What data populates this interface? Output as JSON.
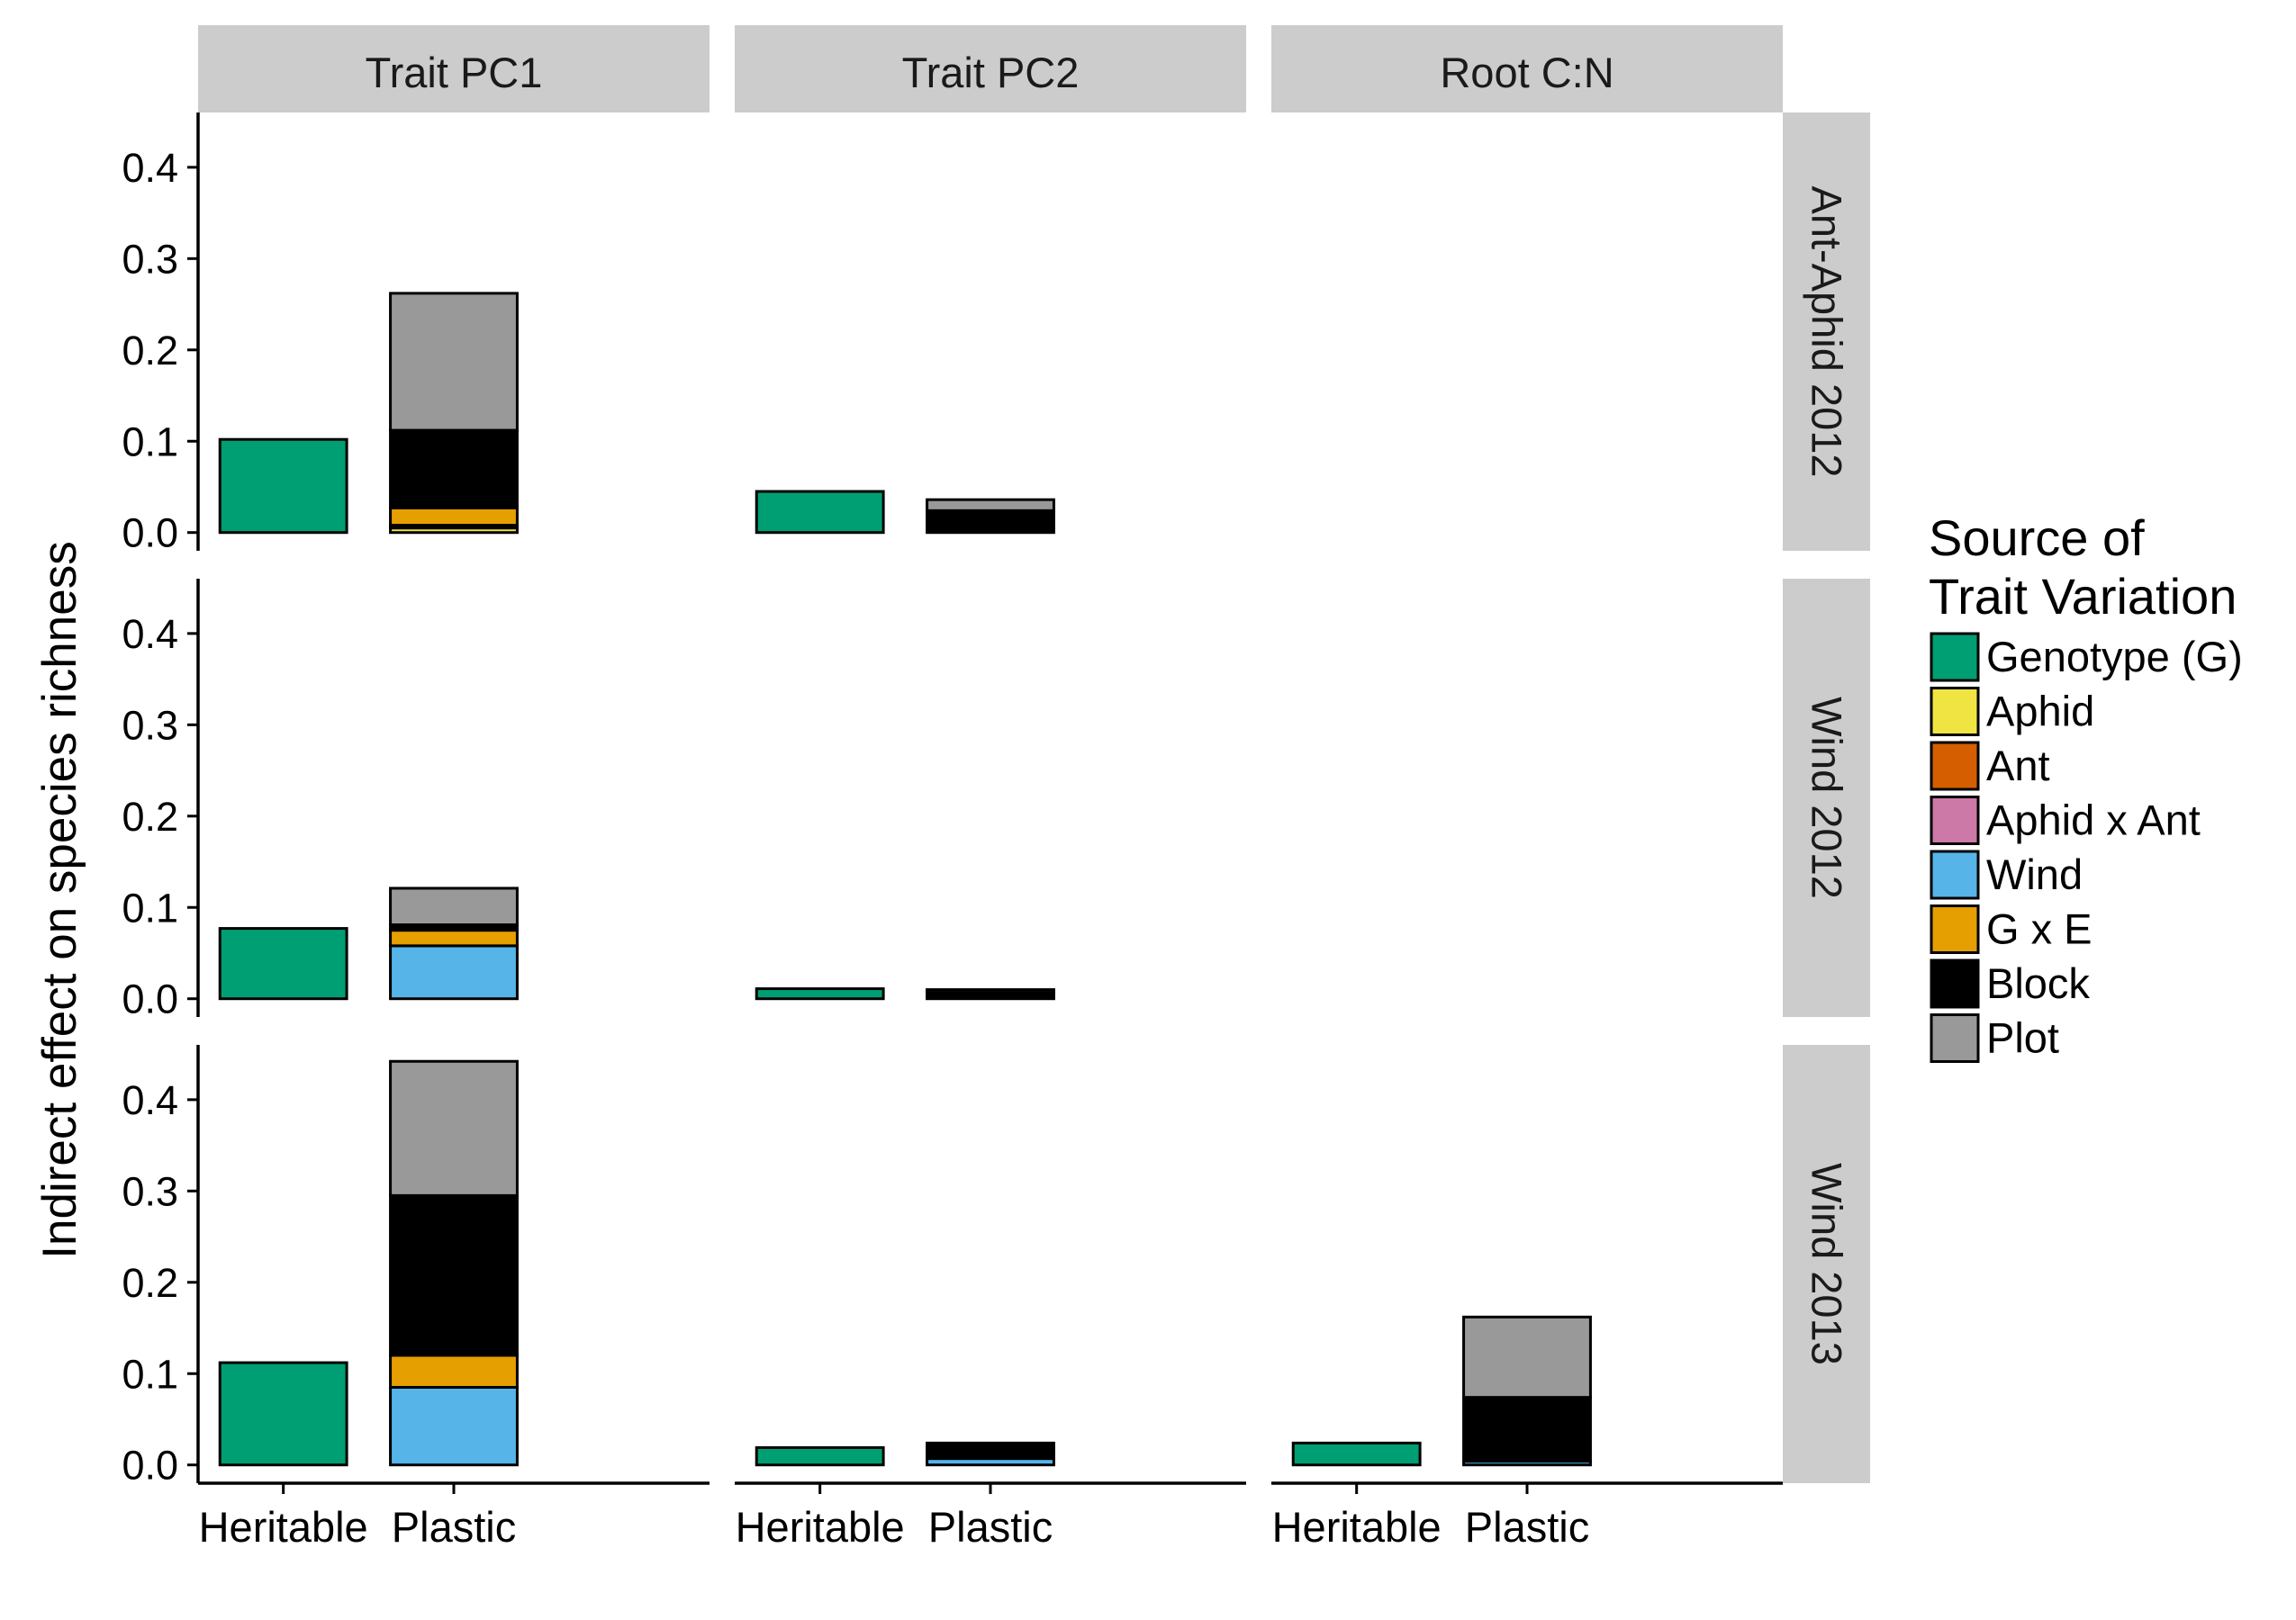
{
  "chart_data": {
    "type": "bar",
    "stacked": true,
    "ylabel": "Indirect effect on species richness",
    "xlabel": "",
    "ylim": [
      -0.02,
      0.46
    ],
    "y_ticks": [
      0.0,
      0.1,
      0.2,
      0.3,
      0.4
    ],
    "y_tick_labels": [
      "0.0",
      "0.1",
      "0.2",
      "0.3",
      "0.4"
    ],
    "columns": [
      "Trait PC1",
      "Trait PC2",
      "Root C:N"
    ],
    "rows": [
      "Ant-Aphid 2012",
      "Wind 2012",
      "Wind 2013"
    ],
    "categories": [
      "Heritable",
      "Plastic"
    ],
    "legend": {
      "title_lines": [
        "Source of",
        "Trait Variation"
      ],
      "position": "right",
      "items": [
        {
          "name": "Genotype (G)",
          "color": "#009E73"
        },
        {
          "name": "Aphid",
          "color": "#F0E442"
        },
        {
          "name": "Ant",
          "color": "#D55E00"
        },
        {
          "name": "Aphid x Ant",
          "color": "#CC79A7"
        },
        {
          "name": "Wind",
          "color": "#56B4E9"
        },
        {
          "name": "G x E",
          "color": "#E69F00"
        },
        {
          "name": "Block",
          "color": "#000000"
        },
        {
          "name": "Plot",
          "color": "#999999"
        }
      ]
    },
    "panels": [
      {
        "row": "Ant-Aphid 2012",
        "column": "Trait PC1",
        "bars": [
          {
            "category": "Heritable",
            "segments": [
              {
                "source": "Genotype (G)",
                "value": 0.102
              }
            ]
          },
          {
            "category": "Plastic",
            "segments": [
              {
                "source": "Aphid",
                "value": 0.005
              },
              {
                "source": "Ant",
                "value": 0.003
              },
              {
                "source": "G x E",
                "value": 0.019
              },
              {
                "source": "Block",
                "value": 0.085
              },
              {
                "source": "Plot",
                "value": 0.15
              }
            ]
          }
        ]
      },
      {
        "row": "Ant-Aphid 2012",
        "column": "Trait PC2",
        "bars": [
          {
            "category": "Heritable",
            "segments": [
              {
                "source": "Genotype (G)",
                "value": 0.045
              }
            ]
          },
          {
            "category": "Plastic",
            "segments": [
              {
                "source": "Block",
                "value": 0.024
              },
              {
                "source": "Plot",
                "value": 0.012
              }
            ]
          }
        ]
      },
      {
        "row": "Ant-Aphid 2012",
        "column": "Root C:N",
        "bars": []
      },
      {
        "row": "Wind 2012",
        "column": "Trait PC1",
        "bars": [
          {
            "category": "Heritable",
            "segments": [
              {
                "source": "Genotype (G)",
                "value": 0.077
              }
            ]
          },
          {
            "category": "Plastic",
            "segments": [
              {
                "source": "Wind",
                "value": 0.058
              },
              {
                "source": "G x E",
                "value": 0.017
              },
              {
                "source": "Block",
                "value": 0.006
              },
              {
                "source": "Plot",
                "value": 0.04
              }
            ]
          }
        ]
      },
      {
        "row": "Wind 2012",
        "column": "Trait PC2",
        "bars": [
          {
            "category": "Heritable",
            "segments": [
              {
                "source": "Genotype (G)",
                "value": 0.011
              }
            ]
          },
          {
            "category": "Plastic",
            "segments": [
              {
                "source": "Block",
                "value": 0.007
              },
              {
                "source": "Plot",
                "value": 0.003
              }
            ]
          }
        ]
      },
      {
        "row": "Wind 2012",
        "column": "Root C:N",
        "bars": []
      },
      {
        "row": "Wind 2013",
        "column": "Trait PC1",
        "bars": [
          {
            "category": "Heritable",
            "segments": [
              {
                "source": "Genotype (G)",
                "value": 0.112
              }
            ]
          },
          {
            "category": "Plastic",
            "segments": [
              {
                "source": "Wind",
                "value": 0.085
              },
              {
                "source": "G x E",
                "value": 0.035
              },
              {
                "source": "Block",
                "value": 0.175
              },
              {
                "source": "Plot",
                "value": 0.147
              }
            ]
          }
        ]
      },
      {
        "row": "Wind 2013",
        "column": "Trait PC2",
        "bars": [
          {
            "category": "Heritable",
            "segments": [
              {
                "source": "Genotype (G)",
                "value": 0.019
              }
            ]
          },
          {
            "category": "Plastic",
            "segments": [
              {
                "source": "Wind",
                "value": 0.007
              },
              {
                "source": "Block",
                "value": 0.017
              }
            ]
          }
        ]
      },
      {
        "row": "Wind 2013",
        "column": "Root C:N",
        "bars": [
          {
            "category": "Heritable",
            "segments": [
              {
                "source": "Genotype (G)",
                "value": 0.024
              }
            ]
          },
          {
            "category": "Plastic",
            "segments": [
              {
                "source": "Wind",
                "value": 0.004
              },
              {
                "source": "Block",
                "value": 0.07
              },
              {
                "source": "Plot",
                "value": 0.088
              }
            ]
          }
        ]
      }
    ]
  }
}
